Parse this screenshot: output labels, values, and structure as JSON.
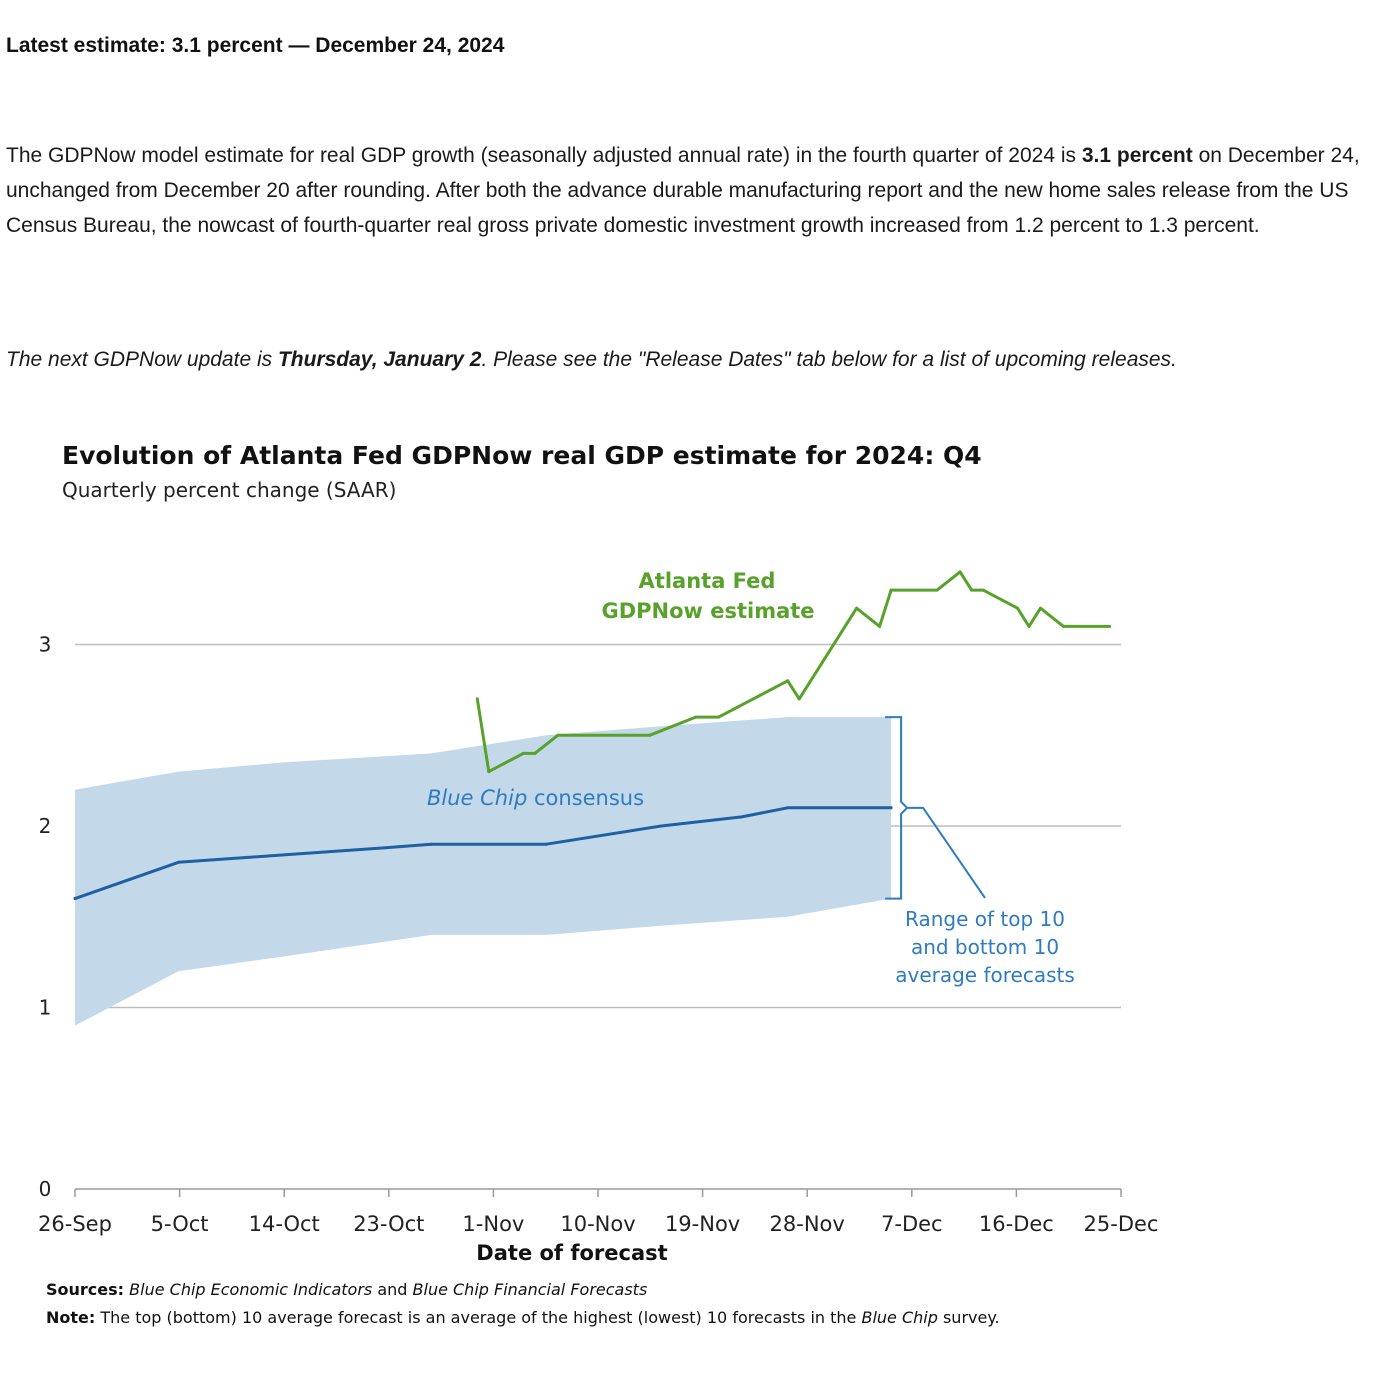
{
  "header": {
    "headline": "Latest estimate: 3.1 percent — December 24, 2024"
  },
  "body": {
    "p1_a": "The GDPNow model estimate for real GDP growth (seasonally adjusted annual rate) in the fourth quarter of 2024 is ",
    "p1_bold": "3.1 percent",
    "p1_b": " on December 24, unchanged from December 20 after rounding. After both the advance durable manufacturing report and the new home sales release from the US Census Bureau, the nowcast of fourth-quarter real gross private domestic investment growth increased from 1.2 percent to 1.3 percent.",
    "p2_a": "The next GDPNow update is ",
    "p2_bold": "Thursday, January 2",
    "p2_b": ". Please see the \"Release Dates\" tab below for a list of upcoming releases."
  },
  "chart_data": {
    "type": "line",
    "title": "Evolution of Atlanta Fed GDPNow real GDP estimate for 2024: Q4",
    "subtitle": "Quarterly percent change (SAAR)",
    "xlabel": "Date of forecast",
    "ylabel": "",
    "x_start": "2024-09-26",
    "x_end": "2024-12-26",
    "x_ticks": [
      "26-Sep",
      "5-Oct",
      "14-Oct",
      "23-Oct",
      "1-Nov",
      "10-Nov",
      "19-Nov",
      "28-Nov",
      "7-Dec",
      "16-Dec",
      "25-Dec"
    ],
    "ylim": [
      0,
      3.5
    ],
    "y_ticks": [
      "0",
      "1",
      "2",
      "3"
    ],
    "grid": true,
    "colors": {
      "gdpnow": "#58a12b",
      "consensus": "#1f5fa3",
      "band": "#c3d9ea",
      "annotation": "#2f7bc0",
      "grid": "#bdbdbd"
    },
    "annotations": {
      "gdpnow_l1": "Atlanta Fed",
      "gdpnow_l2": "GDPNow estimate",
      "consensus_italic": "Blue Chip",
      "consensus_rest": " consensus",
      "range_l1": "Range of top 10",
      "range_l2": "and bottom 10",
      "range_l3": "average forecasts"
    },
    "series": [
      {
        "name": "Atlanta Fed GDPNow estimate",
        "points": [
          [
            "2024-10-31",
            2.7
          ],
          [
            "2024-11-01",
            2.3
          ],
          [
            "2024-11-04",
            2.4
          ],
          [
            "2024-11-05",
            2.4
          ],
          [
            "2024-11-07",
            2.5
          ],
          [
            "2024-11-15",
            2.5
          ],
          [
            "2024-11-19",
            2.6
          ],
          [
            "2024-11-21",
            2.6
          ],
          [
            "2024-11-27",
            2.8
          ],
          [
            "2024-11-28",
            2.7
          ],
          [
            "2024-12-03",
            3.2
          ],
          [
            "2024-12-05",
            3.1
          ],
          [
            "2024-12-06",
            3.3
          ],
          [
            "2024-12-10",
            3.3
          ],
          [
            "2024-12-12",
            3.4
          ],
          [
            "2024-12-13",
            3.3
          ],
          [
            "2024-12-14",
            3.3
          ],
          [
            "2024-12-17",
            3.2
          ],
          [
            "2024-12-18",
            3.1
          ],
          [
            "2024-12-19",
            3.2
          ],
          [
            "2024-12-21",
            3.1
          ],
          [
            "2024-12-25",
            3.1
          ]
        ]
      },
      {
        "name": "Blue Chip consensus",
        "points": [
          [
            "2024-09-26",
            1.6
          ],
          [
            "2024-10-05",
            1.8
          ],
          [
            "2024-10-14",
            1.84
          ],
          [
            "2024-10-23",
            1.88
          ],
          [
            "2024-10-27",
            1.9
          ],
          [
            "2024-11-06",
            1.9
          ],
          [
            "2024-11-16",
            2.0
          ],
          [
            "2024-11-23",
            2.05
          ],
          [
            "2024-11-27",
            2.1
          ],
          [
            "2024-12-06",
            2.1
          ]
        ]
      }
    ],
    "band": {
      "name": "Range of top 10 and bottom 10 average forecasts",
      "points": [
        [
          "2024-09-26",
          0.9,
          2.2
        ],
        [
          "2024-10-05",
          1.2,
          2.3
        ],
        [
          "2024-10-14",
          1.28,
          2.35
        ],
        [
          "2024-10-27",
          1.4,
          2.4
        ],
        [
          "2024-11-06",
          1.4,
          2.5
        ],
        [
          "2024-11-16",
          1.45,
          2.55
        ],
        [
          "2024-11-27",
          1.5,
          2.6
        ],
        [
          "2024-12-06",
          1.6,
          2.6
        ]
      ]
    },
    "sources_label": "Sources:",
    "sources_text_1": "Blue Chip Economic Indicators",
    "sources_text_2": " and ",
    "sources_text_3": "Blue Chip Financial Forecasts",
    "note_label": "Note:",
    "note_text_1": " The top (bottom) 10 average forecast is an average of the highest (lowest) 10 forecasts in the ",
    "note_text_2": "Blue Chip",
    "note_text_3": " survey."
  }
}
